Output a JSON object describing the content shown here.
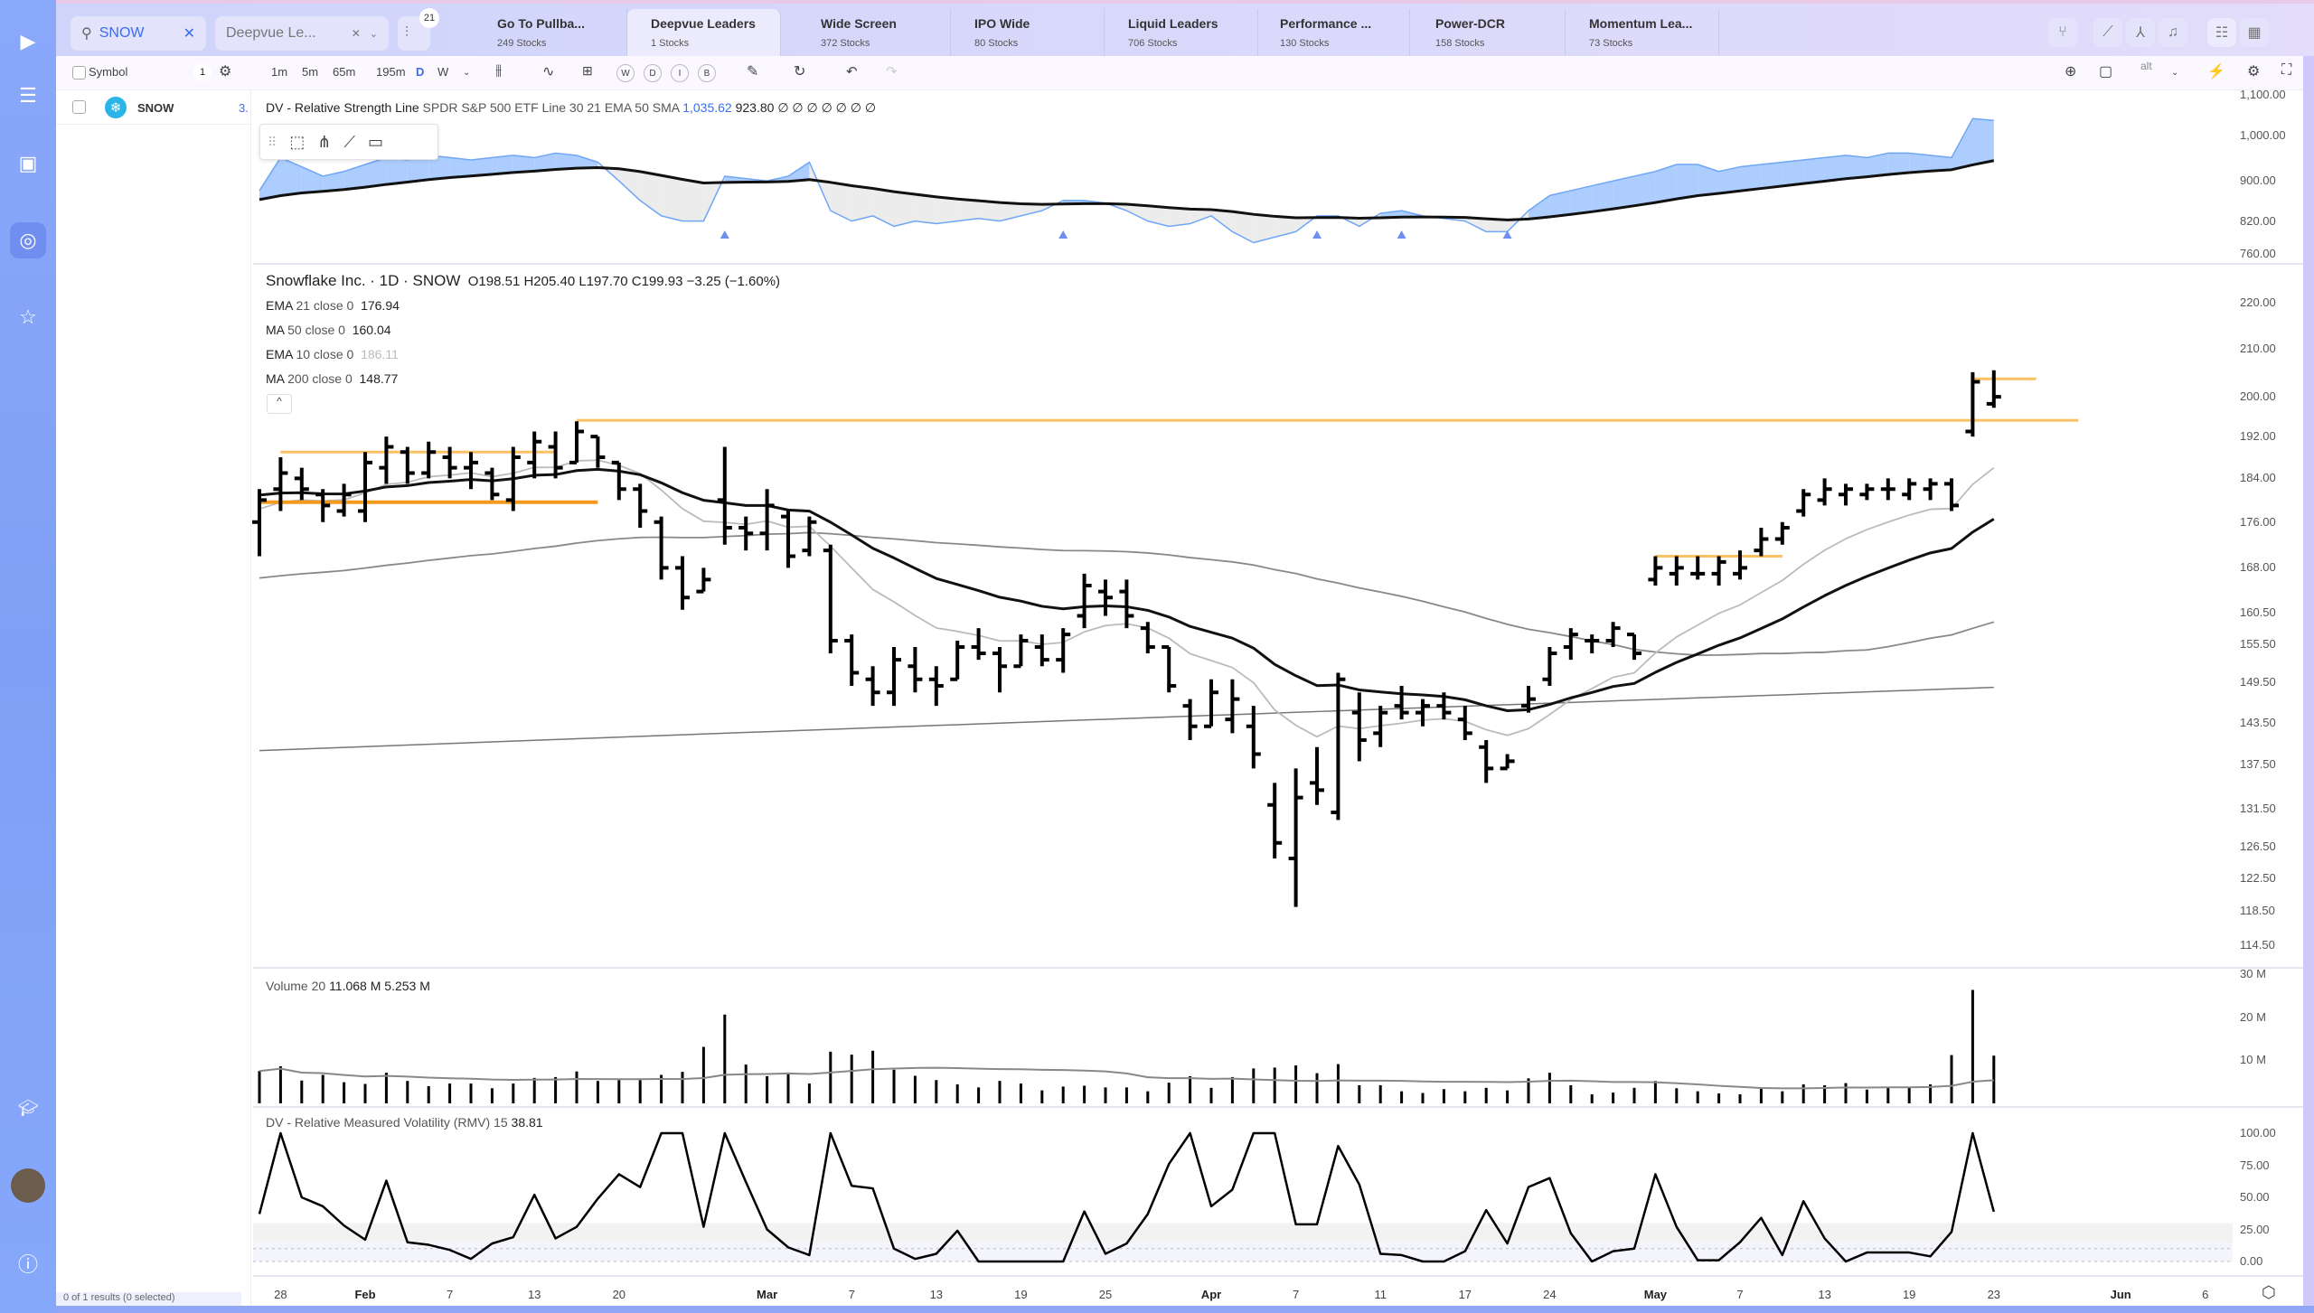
{
  "sidebar": {
    "items": [
      {
        "icon": "play-logo-icon"
      },
      {
        "icon": "list-icon"
      },
      {
        "icon": "book-icon"
      },
      {
        "icon": "target-icon",
        "active": true
      },
      {
        "icon": "star-icon"
      },
      {
        "icon": "graduation-cap-icon"
      },
      {
        "icon": "avatar"
      },
      {
        "icon": "help-icon"
      }
    ]
  },
  "topbar": {
    "search_value": "SNOW",
    "watchlist_select": "Deepvue Le...",
    "filter_badge": "21",
    "tabs": [
      {
        "title": "Go To Pullba...",
        "sub": "249 Stocks"
      },
      {
        "title": "Deepvue Leaders",
        "sub": "1 Stocks",
        "active": true
      },
      {
        "title": "Wide Screen",
        "sub": "372 Stocks"
      },
      {
        "title": "IPO Wide",
        "sub": "80 Stocks"
      },
      {
        "title": "Liquid Leaders",
        "sub": "706 Stocks"
      },
      {
        "title": "Performance ...",
        "sub": "130 Stocks"
      },
      {
        "title": "Power-DCR",
        "sub": "158 Stocks"
      },
      {
        "title": "Momentum Lea...",
        "sub": "73 Stocks"
      }
    ],
    "right_icons": [
      "share-icon",
      "chart-icon",
      "network-icon",
      "bell-icon",
      "list-view-icon",
      "grid-view-icon"
    ]
  },
  "toolbar2": {
    "symbol_header": "Symbol",
    "count": "1",
    "intervals": [
      "1m",
      "5m",
      "65m",
      "195m",
      "D",
      "W"
    ],
    "active_interval": "D",
    "circle_buttons": [
      "W",
      "D",
      "I",
      "B"
    ],
    "alt_label": "alt"
  },
  "watchlist": {
    "rows": [
      {
        "symbol": "SNOW"
      }
    ],
    "footer": "0 of 1 results (0 selected)"
  },
  "rs_legend": {
    "pane_number": "3.",
    "name": "DV - Relative Strength Line",
    "params": "SPDR S&P 500 ETF Line 30 21 EMA 50 SMA",
    "value1": "1,035.62",
    "value2": "923.80",
    "nulls": "∅ ∅ ∅ ∅ ∅ ∅ ∅"
  },
  "price_legend": {
    "title": "Snowflake Inc. · 1D · SNOW",
    "o": "O198.51",
    "h": "H205.40",
    "l": "L197.70",
    "c": "C199.93",
    "change": "−3.25 (−1.60%)",
    "studies": [
      {
        "name": "EMA",
        "params": "21 close 0",
        "value": "176.94"
      },
      {
        "name": "MA",
        "params": "50 close 0",
        "value": "160.04"
      },
      {
        "name": "EMA",
        "params": "10 close 0",
        "value": "186.11"
      },
      {
        "name": "MA",
        "params": "200 close 0",
        "value": "148.77"
      }
    ]
  },
  "volume_legend": {
    "name": "Volume",
    "params": "20",
    "value1": "11.068 M",
    "value2": "5.253 M"
  },
  "rmv_legend": {
    "name": "DV - Relative Measured Volatility (RMV)",
    "params": "15",
    "value": "38.81"
  },
  "colors": {
    "accent": "#3b6cf0",
    "rs_fill_up": "#9fc4ff",
    "rs_fill_down": "#ececec",
    "drawing": "#f7a531",
    "bars": "#000000"
  },
  "chart_data": {
    "type": "ohlc",
    "price_axis": {
      "scale": "log",
      "ticks": [
        "220.00",
        "210.00",
        "200.00",
        "192.00",
        "184.00",
        "176.00",
        "168.00",
        "160.50",
        "155.50",
        "149.50",
        "143.50",
        "137.50",
        "131.50",
        "126.50",
        "122.50",
        "118.50",
        "114.50"
      ]
    },
    "rs_axis": {
      "scale": "log",
      "ticks": [
        "1,100.00",
        "1,000.00",
        "900.00",
        "820.00",
        "760.00"
      ]
    },
    "volume_axis": {
      "ticks": [
        "30 M",
        "20 M",
        "10 M"
      ],
      "values": [
        30,
        20,
        10
      ]
    },
    "rmv_axis": {
      "ticks": [
        "100.00",
        "75.00",
        "50.00",
        "25.00",
        "0.00"
      ],
      "values": [
        100,
        75,
        50,
        25,
        0
      ]
    },
    "date_ticks": [
      {
        "label": "28",
        "date": "2025-01-28"
      },
      {
        "label": "Feb",
        "date": "2025-02-03",
        "major": true
      },
      {
        "label": "7",
        "date": "2025-02-07"
      },
      {
        "label": "13",
        "date": "2025-02-13"
      },
      {
        "label": "20",
        "date": "2025-02-20"
      },
      {
        "label": "Mar",
        "date": "2025-03-03",
        "major": true
      },
      {
        "label": "7",
        "date": "2025-03-07"
      },
      {
        "label": "13",
        "date": "2025-03-13"
      },
      {
        "label": "19",
        "date": "2025-03-19"
      },
      {
        "label": "25",
        "date": "2025-03-25"
      },
      {
        "label": "Apr",
        "date": "2025-04-01",
        "major": true
      },
      {
        "label": "7",
        "date": "2025-04-07"
      },
      {
        "label": "11",
        "date": "2025-04-11"
      },
      {
        "label": "17",
        "date": "2025-04-17"
      },
      {
        "label": "24",
        "date": "2025-04-24"
      },
      {
        "label": "May",
        "date": "2025-05-01",
        "major": true
      },
      {
        "label": "7",
        "date": "2025-05-07"
      },
      {
        "label": "13",
        "date": "2025-05-13"
      },
      {
        "label": "19",
        "date": "2025-05-19"
      },
      {
        "label": "23",
        "date": "2025-05-23"
      },
      {
        "label": "Jun",
        "date": "2025-06-02",
        "major": true
      },
      {
        "label": "6",
        "date": "2025-06-06"
      }
    ],
    "dates": [
      "2025-01-27",
      "2025-01-28",
      "2025-01-29",
      "2025-01-30",
      "2025-01-31",
      "2025-02-03",
      "2025-02-04",
      "2025-02-05",
      "2025-02-06",
      "2025-02-07",
      "2025-02-10",
      "2025-02-11",
      "2025-02-12",
      "2025-02-13",
      "2025-02-14",
      "2025-02-18",
      "2025-02-19",
      "2025-02-20",
      "2025-02-21",
      "2025-02-24",
      "2025-02-25",
      "2025-02-26",
      "2025-02-27",
      "2025-02-28",
      "2025-03-03",
      "2025-03-04",
      "2025-03-05",
      "2025-03-06",
      "2025-03-07",
      "2025-03-10",
      "2025-03-11",
      "2025-03-12",
      "2025-03-13",
      "2025-03-14",
      "2025-03-17",
      "2025-03-18",
      "2025-03-19",
      "2025-03-20",
      "2025-03-21",
      "2025-03-24",
      "2025-03-25",
      "2025-03-26",
      "2025-03-27",
      "2025-03-28",
      "2025-03-31",
      "2025-04-01",
      "2025-04-02",
      "2025-04-03",
      "2025-04-04",
      "2025-04-07",
      "2025-04-08",
      "2025-04-09",
      "2025-04-10",
      "2025-04-11",
      "2025-04-14",
      "2025-04-15",
      "2025-04-16",
      "2025-04-17",
      "2025-04-21",
      "2025-04-22",
      "2025-04-23",
      "2025-04-24",
      "2025-04-25",
      "2025-04-28",
      "2025-04-29",
      "2025-04-30",
      "2025-05-01",
      "2025-05-02",
      "2025-05-05",
      "2025-05-06",
      "2025-05-07",
      "2025-05-08",
      "2025-05-09",
      "2025-05-12",
      "2025-05-13",
      "2025-05-14",
      "2025-05-15",
      "2025-05-16",
      "2025-05-19",
      "2025-05-20",
      "2025-05-21",
      "2025-05-22",
      "2025-05-23"
    ],
    "ohlc": [
      [
        176,
        182,
        170,
        180
      ],
      [
        182,
        188,
        178,
        185
      ],
      [
        184,
        186,
        180,
        182
      ],
      [
        181,
        182,
        176,
        179
      ],
      [
        178,
        183,
        177,
        181
      ],
      [
        178,
        189,
        176,
        187
      ],
      [
        186,
        192,
        183,
        190
      ],
      [
        189,
        190,
        183,
        185
      ],
      [
        185,
        191,
        184,
        189
      ],
      [
        188,
        190,
        184,
        186
      ],
      [
        186,
        189,
        182,
        187
      ],
      [
        185,
        186,
        180,
        181
      ],
      [
        180,
        190,
        178,
        188
      ],
      [
        187,
        193,
        184,
        191
      ],
      [
        190,
        193,
        184,
        186
      ],
      [
        187,
        195,
        187,
        193
      ],
      [
        192,
        192,
        186,
        188
      ],
      [
        187,
        187,
        180,
        182
      ],
      [
        182,
        183,
        175,
        178
      ],
      [
        176,
        177,
        166,
        168
      ],
      [
        168,
        170,
        161,
        163
      ],
      [
        164,
        168,
        164,
        166
      ],
      [
        180,
        190,
        172,
        175
      ],
      [
        175,
        177,
        171,
        174
      ],
      [
        174,
        182,
        171,
        179
      ],
      [
        177,
        178,
        168,
        170
      ],
      [
        171,
        177,
        170,
        176
      ],
      [
        171,
        172,
        154,
        156
      ],
      [
        156,
        157,
        149,
        151
      ],
      [
        150,
        152,
        146,
        148
      ],
      [
        148,
        155,
        146,
        153
      ],
      [
        152,
        155,
        148,
        150
      ],
      [
        150,
        152,
        146,
        149
      ],
      [
        150,
        156,
        150,
        155
      ],
      [
        155,
        158,
        153,
        154
      ],
      [
        154,
        155,
        148,
        152
      ],
      [
        152,
        157,
        152,
        156
      ],
      [
        155,
        157,
        152,
        153
      ],
      [
        153,
        158,
        151,
        157
      ],
      [
        160,
        167,
        158,
        165
      ],
      [
        164,
        166,
        160,
        163
      ],
      [
        164,
        166,
        158,
        160
      ],
      [
        158,
        159,
        154,
        155
      ],
      [
        155,
        155,
        148,
        149
      ],
      [
        146,
        147,
        141,
        143
      ],
      [
        143,
        150,
        143,
        148
      ],
      [
        144,
        150,
        142,
        147
      ],
      [
        143,
        146,
        137,
        139
      ],
      [
        132,
        135,
        125,
        127
      ],
      [
        125,
        137,
        119,
        133
      ],
      [
        135,
        140,
        132,
        134
      ],
      [
        131,
        151,
        130,
        150
      ],
      [
        145,
        148,
        138,
        141
      ],
      [
        142,
        146,
        140,
        145
      ],
      [
        146,
        149,
        144,
        145
      ],
      [
        145,
        147,
        143,
        146
      ],
      [
        146,
        148,
        144,
        145
      ],
      [
        144,
        146,
        141,
        142
      ],
      [
        140,
        141,
        135,
        137
      ],
      [
        137,
        139,
        137,
        138
      ],
      [
        146,
        149,
        145,
        147
      ],
      [
        150,
        155,
        149,
        154
      ],
      [
        155,
        158,
        153,
        157
      ],
      [
        156,
        157,
        154,
        156
      ],
      [
        156,
        159,
        155,
        158
      ],
      [
        157,
        157,
        153,
        154
      ],
      [
        166,
        170,
        165,
        168
      ],
      [
        167,
        170,
        165,
        168
      ],
      [
        167,
        170,
        166,
        167
      ],
      [
        167,
        170,
        165,
        169
      ],
      [
        167,
        171,
        166,
        168
      ],
      [
        171,
        175,
        170,
        173
      ],
      [
        173,
        176,
        172,
        175
      ],
      [
        178,
        182,
        177,
        181
      ],
      [
        180,
        184,
        179,
        182
      ],
      [
        181,
        183,
        179,
        182
      ],
      [
        181,
        183,
        180,
        182
      ],
      [
        182,
        184,
        180,
        182
      ],
      [
        181,
        184,
        180,
        183
      ],
      [
        182,
        184,
        180,
        183
      ],
      [
        183,
        184,
        178,
        179
      ],
      [
        193,
        205,
        192,
        203
      ],
      [
        198.51,
        205.4,
        197.7,
        199.93
      ]
    ],
    "volume_m": [
      7.5,
      8.6,
      5.3,
      6.6,
      4.9,
      4.5,
      7.1,
      5.2,
      4.0,
      4.6,
      4.6,
      3.5,
      4.6,
      5.9,
      6.1,
      7.4,
      5.2,
      5.4,
      5.4,
      6.6,
      7.3,
      13.1,
      20.6,
      9.0,
      6.3,
      7.0,
      4.6,
      12.0,
      11.3,
      12.2,
      7.8,
      6.4,
      5.4,
      4.4,
      3.7,
      5.2,
      4.6,
      3.0,
      3.9,
      4.1,
      3.7,
      3.7,
      2.8,
      4.8,
      6.3,
      3.6,
      6.1,
      8.1,
      8.3,
      8.8,
      7.0,
      9.1,
      4.2,
      4.2,
      2.8,
      2.4,
      3.3,
      2.8,
      3.6,
      3.0,
      5.8,
      7.1,
      4.2,
      2.1,
      2.5,
      3.6,
      5.2,
      3.5,
      2.8,
      2.3,
      2.1,
      3.6,
      2.8,
      4.4,
      4.2,
      4.7,
      3.2,
      3.6,
      3.7,
      4.4,
      11.2,
      26.3,
      11.068
    ],
    "rmv": [
      37,
      100,
      50,
      43,
      28,
      17,
      63,
      15,
      13,
      9,
      2,
      14,
      19,
      52,
      18,
      27,
      49,
      68,
      58,
      100,
      100,
      27,
      100,
      62,
      25,
      11,
      5,
      100,
      59,
      57,
      10,
      2,
      6,
      24,
      0,
      0,
      0,
      0,
      0,
      39,
      6,
      14,
      37,
      76,
      100,
      43,
      56,
      100,
      100,
      29,
      29,
      90,
      60,
      6,
      5,
      0,
      0,
      8,
      40,
      14,
      58,
      65,
      22,
      0,
      8,
      10,
      68,
      27,
      1,
      1,
      15,
      34,
      5,
      47,
      18,
      0,
      7,
      7,
      7,
      4,
      23,
      100,
      38.81
    ],
    "rs_line": [
      880,
      950,
      930,
      910,
      920,
      935,
      950,
      945,
      955,
      950,
      945,
      950,
      955,
      950,
      960,
      955,
      940,
      900,
      860,
      830,
      820,
      820,
      910,
      905,
      900,
      910,
      940,
      840,
      820,
      830,
      810,
      820,
      815,
      820,
      825,
      820,
      830,
      840,
      860,
      860,
      855,
      840,
      820,
      810,
      815,
      830,
      800,
      780,
      790,
      800,
      830,
      830,
      810,
      835,
      840,
      830,
      825,
      820,
      800,
      800,
      840,
      870,
      880,
      890,
      900,
      910,
      920,
      935,
      935,
      920,
      930,
      935,
      940,
      945,
      950,
      955,
      950,
      960,
      960,
      955,
      950,
      1040,
      1035.62
    ],
    "rs_new_high_markers": [
      "2025-02-27",
      "2025-03-21",
      "2025-04-08",
      "2025-04-14",
      "2025-04-22"
    ],
    "ma200_start": 139.5,
    "drawings": [
      {
        "price": 195.2,
        "from": "2025-02-18",
        "to": "2025-05-29",
        "style": "light"
      },
      {
        "price": 189,
        "from": "2025-01-28",
        "to": "2025-02-14",
        "style": "light"
      },
      {
        "price": 179.6,
        "from": "2025-01-27",
        "to": "2025-02-19",
        "style": "bold"
      },
      {
        "price": 170,
        "from": "2025-05-01",
        "to": "2025-05-09",
        "style": "light"
      },
      {
        "price": 203.6,
        "from": "2025-05-22",
        "to": "2025-05-27",
        "style": "light"
      }
    ]
  }
}
